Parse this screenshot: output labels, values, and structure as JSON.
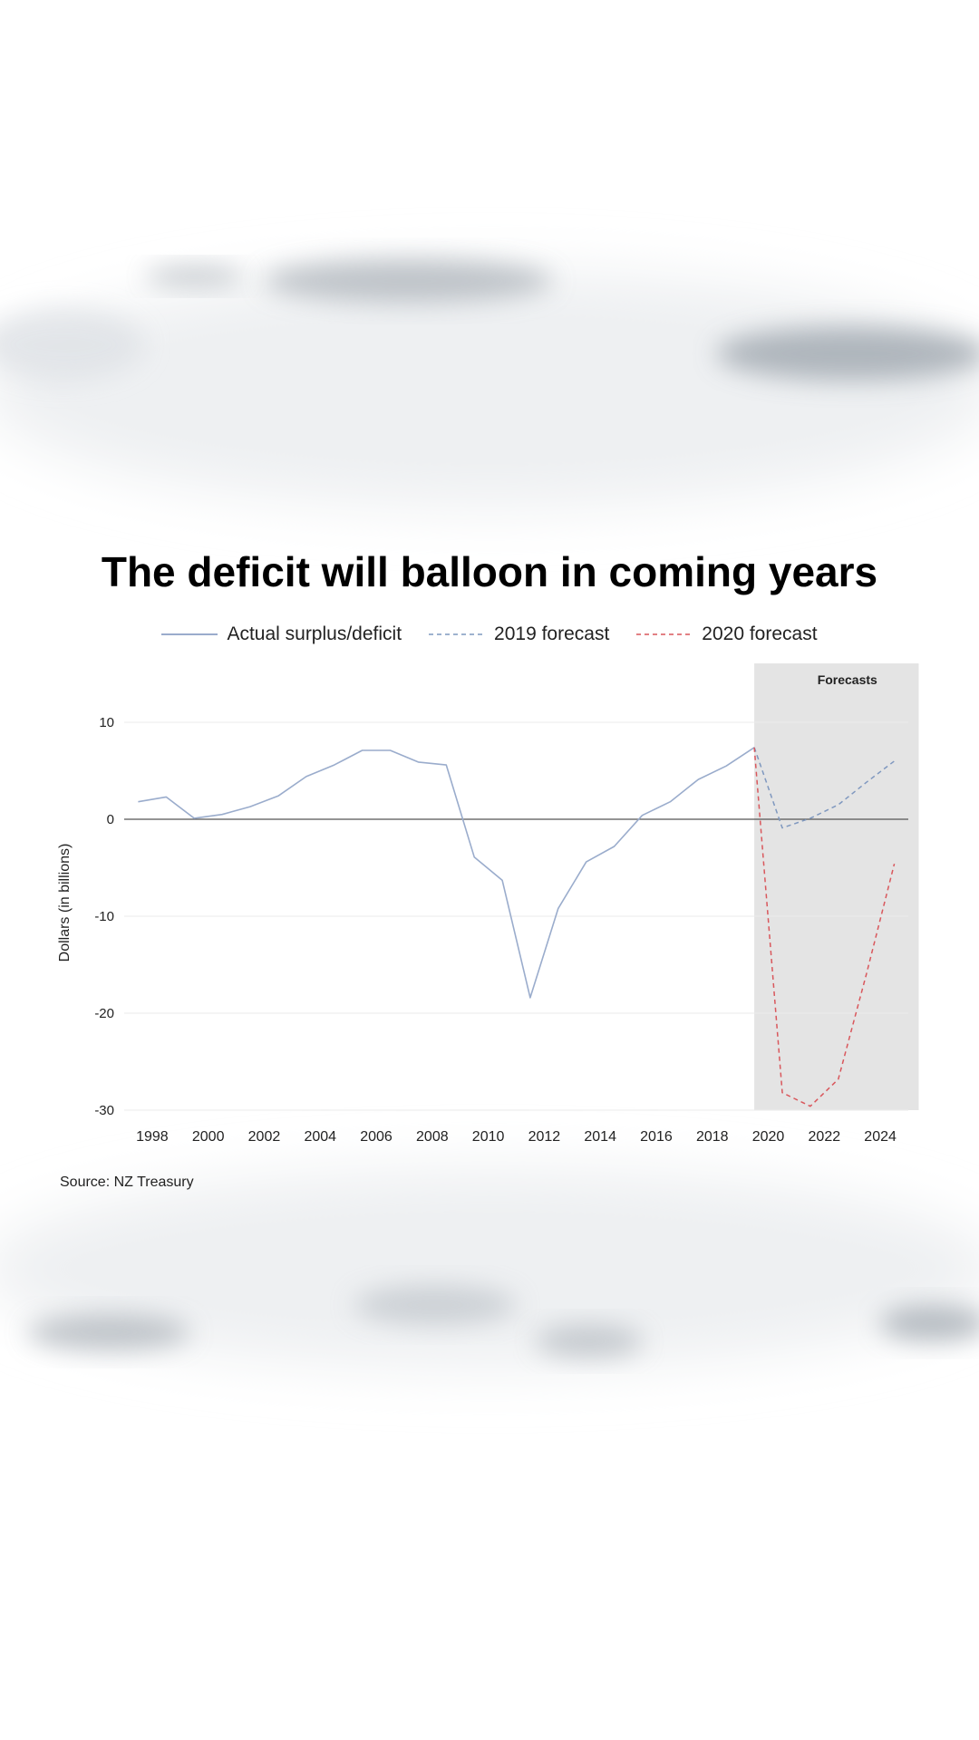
{
  "title": "The deficit will balloon in coming years",
  "source": "Source: NZ Treasury",
  "colors": {
    "actual": "#9aaccc",
    "forecast_2019": "#7f98bf",
    "forecast_2020": "#d9575c",
    "shade": "#e4e4e4"
  },
  "chart_data": {
    "type": "line",
    "title": "The deficit will balloon in coming years",
    "ylabel": "Dollars (in billions)",
    "xlabel": "",
    "xlim": [
      1997,
      2025
    ],
    "ylim": [
      -30,
      10
    ],
    "xticks": [
      1998,
      2000,
      2002,
      2004,
      2006,
      2008,
      2010,
      2012,
      2014,
      2016,
      2018,
      2020,
      2022,
      2024
    ],
    "yticks": [
      10,
      0,
      -10,
      -20,
      -30
    ],
    "grid": true,
    "legend_position": "top",
    "shaded_region": {
      "from": 2019.5,
      "to": 2025.5,
      "label": "Forecasts"
    },
    "series": [
      {
        "name": "Actual surplus/deficit",
        "style": "solid",
        "x": [
          1997.5,
          1998.5,
          1999.5,
          2000.5,
          2001.5,
          2002.5,
          2003.5,
          2004.5,
          2005.5,
          2006.5,
          2007.5,
          2008.5,
          2009.5,
          2010.5,
          2011.5,
          2012.5,
          2013.5,
          2014.5,
          2015.5,
          2016.5,
          2017.5,
          2018.5,
          2019.5
        ],
        "y": [
          1.8,
          2.3,
          0.1,
          0.5,
          1.3,
          2.4,
          4.4,
          5.6,
          7.1,
          7.1,
          5.9,
          5.6,
          -3.9,
          -6.3,
          -18.4,
          -9.2,
          -4.4,
          -2.8,
          0.4,
          1.8,
          4.1,
          5.5,
          7.4
        ]
      },
      {
        "name": "2019 forecast",
        "style": "dashed",
        "x": [
          2019.5,
          2020.5,
          2021.5,
          2022.5,
          2023.5,
          2024.5
        ],
        "y": [
          7.4,
          -0.9,
          0.1,
          1.5,
          3.8,
          6.0
        ]
      },
      {
        "name": "2020 forecast",
        "style": "dashed",
        "x": [
          2019.5,
          2020.5,
          2021.5,
          2022.5,
          2023.5,
          2024.5
        ],
        "y": [
          7.4,
          -28.2,
          -29.6,
          -26.8,
          -16.0,
          -4.6
        ]
      }
    ]
  }
}
